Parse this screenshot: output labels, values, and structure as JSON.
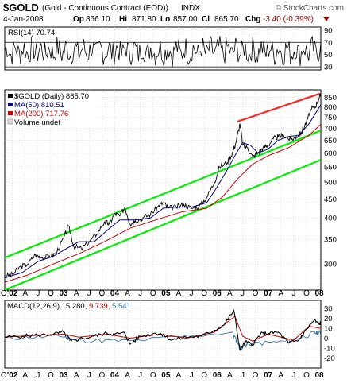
{
  "header": {
    "symbol": "$GOLD",
    "description": "(Gold - Continuous Contract (EOD))",
    "exchange": "INDX",
    "watermark": "© StockCharts.com",
    "date": "4-Jan-2008",
    "quote": [
      {
        "label": "Op",
        "value": "866.10"
      },
      {
        "label": "Hi",
        "value": "871.80"
      },
      {
        "label": "Lo",
        "value": "857.00"
      },
      {
        "label": "Cl",
        "value": "865.70"
      },
      {
        "label": "Chg",
        "value": "-3.40 (-0.39%)"
      }
    ],
    "chg_arrow": "down-triangle-icon",
    "chg_color": "#990000"
  },
  "chart_data": [
    {
      "type": "line",
      "panel": "rsi",
      "title": "RSI(14) 70.74",
      "ylim": [
        25,
        95
      ],
      "yticks": [
        30,
        50,
        70,
        90
      ],
      "reference_lines": [
        30,
        70
      ],
      "x_range": [
        2001.85,
        2008.03
      ],
      "series": [
        {
          "color": "#000000",
          "value_last": 70.74
        }
      ],
      "grid": true
    },
    {
      "type": "line",
      "panel": "price",
      "scale": "log",
      "legend_position": "top-left",
      "legend": [
        {
          "text": "$GOLD (Daily) 865.70",
          "color": "#000000"
        },
        {
          "text": "MA(50) 810.51",
          "color": "#000080"
        },
        {
          "text": "MA(200) 717.76",
          "color": "#cc0000"
        },
        {
          "text": "Volume undef",
          "color": "#000000"
        }
      ],
      "ylim": [
        255,
        890
      ],
      "yticks": [
        300,
        350,
        400,
        450,
        500,
        550,
        600,
        650,
        700,
        750,
        800,
        850
      ],
      "x_range": [
        2001.85,
        2008.03
      ],
      "series": [
        {
          "name": "$GOLD (Daily)",
          "color": "#000000",
          "x": [
            2001.85,
            2002.0,
            2002.15,
            2002.3,
            2002.45,
            2002.55,
            2002.7,
            2002.85,
            2003.0,
            2003.1,
            2003.2,
            2003.35,
            2003.5,
            2003.65,
            2003.8,
            2003.9,
            2004.0,
            2004.1,
            2004.2,
            2004.3,
            2004.4,
            2004.55,
            2004.7,
            2004.85,
            2004.95,
            2005.05,
            2005.2,
            2005.35,
            2005.5,
            2005.65,
            2005.8,
            2005.95,
            2006.05,
            2006.2,
            2006.3,
            2006.37,
            2006.45,
            2006.5,
            2006.6,
            2006.7,
            2006.8,
            2006.9,
            2007.0,
            2007.1,
            2007.2,
            2007.3,
            2007.45,
            2007.55,
            2007.65,
            2007.75,
            2007.85,
            2007.92,
            2008.0,
            2008.03
          ],
          "y": [
            278,
            281,
            295,
            300,
            318,
            313,
            315,
            320,
            352,
            380,
            335,
            330,
            345,
            362,
            390,
            385,
            412,
            405,
            428,
            385,
            394,
            400,
            410,
            430,
            440,
            425,
            428,
            435,
            425,
            430,
            455,
            500,
            550,
            565,
            600,
            640,
            720,
            630,
            620,
            585,
            600,
            620,
            630,
            655,
            665,
            670,
            650,
            665,
            680,
            730,
            790,
            800,
            850,
            865.7
          ]
        },
        {
          "name": "MA(50)",
          "color": "#000080",
          "x": [
            2001.85,
            2002.2,
            2002.5,
            2002.8,
            2003.05,
            2003.3,
            2003.6,
            2003.9,
            2004.1,
            2004.4,
            2004.7,
            2004.95,
            2005.2,
            2005.5,
            2005.8,
            2006.0,
            2006.2,
            2006.35,
            2006.5,
            2006.65,
            2006.8,
            2007.0,
            2007.2,
            2007.4,
            2007.6,
            2007.8,
            2008.03
          ],
          "y": [
            275,
            285,
            305,
            315,
            330,
            345,
            345,
            375,
            395,
            395,
            400,
            425,
            428,
            428,
            440,
            485,
            540,
            590,
            640,
            630,
            600,
            615,
            650,
            665,
            670,
            720,
            810.51
          ]
        },
        {
          "name": "MA(200)",
          "color": "#cc0000",
          "x": [
            2001.85,
            2002.3,
            2002.8,
            2003.3,
            2003.8,
            2004.3,
            2004.8,
            2005.3,
            2005.8,
            2006.1,
            2006.4,
            2006.7,
            2007.0,
            2007.4,
            2007.8,
            2008.03
          ],
          "y": [
            268,
            280,
            300,
            320,
            345,
            375,
            395,
            415,
            425,
            455,
            510,
            560,
            590,
            620,
            670,
            717.76
          ]
        }
      ],
      "trend_lines": [
        {
          "color": "#00ee00",
          "x": [
            2001.85,
            2008.03
          ],
          "y": [
            312,
            690
          ]
        },
        {
          "color": "#00ee00",
          "x": [
            2001.85,
            2008.03
          ],
          "y": [
            255,
            575
          ]
        },
        {
          "color": "#ff2222",
          "x": [
            2006.4,
            2008.0
          ],
          "y": [
            730,
            868
          ]
        }
      ],
      "grid": true
    },
    {
      "type": "line",
      "panel": "macd",
      "title": "MACD(12,26,9) 15.280, 9.739, 5.541",
      "legend": [
        {
          "text": "MACD(12,26,9) 15.280",
          "color": "#000000"
        },
        {
          "text": "9.739",
          "color": "#cc0000"
        },
        {
          "text": "5.541",
          "color": "#3377aa"
        }
      ],
      "ylim": [
        -30,
        38
      ],
      "yticks": [
        -20,
        -10,
        0,
        10,
        20,
        30
      ],
      "x_range": [
        2001.85,
        2008.03
      ],
      "series": [
        {
          "name": "MACD",
          "color": "#000000",
          "x": [
            2001.85,
            2002.2,
            2002.5,
            2002.8,
            2003.0,
            2003.15,
            2003.3,
            2003.6,
            2003.85,
            2004.0,
            2004.2,
            2004.3,
            2004.5,
            2004.8,
            2004.95,
            2005.1,
            2005.4,
            2005.7,
            2005.95,
            2006.15,
            2006.33,
            2006.45,
            2006.55,
            2006.7,
            2006.85,
            2007.0,
            2007.2,
            2007.4,
            2007.6,
            2007.75,
            2007.9,
            2008.0,
            2008.03
          ],
          "y": [
            1,
            2,
            3,
            4,
            6,
            -3,
            -1,
            2,
            5,
            4,
            5,
            -6,
            2,
            5,
            4,
            -2,
            1,
            2,
            8,
            14,
            28,
            -12,
            -4,
            -6,
            4,
            5,
            6,
            -5,
            -2,
            9,
            18,
            14,
            15.28
          ]
        },
        {
          "name": "Signal",
          "color": "#cc0000",
          "x": [
            2001.85,
            2002.5,
            2003.0,
            2003.3,
            2003.85,
            2004.3,
            2004.9,
            2005.4,
            2005.95,
            2006.35,
            2006.5,
            2006.7,
            2007.0,
            2007.5,
            2007.8,
            2008.03
          ],
          "y": [
            1,
            3,
            4,
            1,
            4,
            0,
            4,
            0,
            6,
            22,
            2,
            -3,
            4,
            -2,
            12,
            9.739
          ]
        },
        {
          "name": "Histogram",
          "color": "#3377aa",
          "x": [
            2001.85,
            2003.0,
            2003.2,
            2004.3,
            2006.3,
            2006.45,
            2006.6,
            2007.4,
            2007.9,
            2008.03
          ],
          "y": [
            0,
            2,
            -2,
            -3,
            6,
            -10,
            -6,
            -3,
            5,
            5.541
          ]
        }
      ],
      "grid": true
    }
  ],
  "x_axis": {
    "labels": [
      {
        "text": "O",
        "x": 2001.83
      },
      {
        "text": "'02",
        "x": 2002.0
      },
      {
        "text": "A",
        "x": 2002.25
      },
      {
        "text": "J",
        "x": 2002.5
      },
      {
        "text": "O",
        "x": 2002.75
      },
      {
        "text": "03",
        "x": 2003.0
      },
      {
        "text": "A",
        "x": 2003.25
      },
      {
        "text": "J",
        "x": 2003.5
      },
      {
        "text": "O",
        "x": 2003.75
      },
      {
        "text": "04",
        "x": 2004.0
      },
      {
        "text": "A",
        "x": 2004.25
      },
      {
        "text": "J",
        "x": 2004.5
      },
      {
        "text": "O",
        "x": 2004.75
      },
      {
        "text": "05",
        "x": 2005.0
      },
      {
        "text": "A",
        "x": 2005.25
      },
      {
        "text": "J",
        "x": 2005.5
      },
      {
        "text": "O",
        "x": 2005.75
      },
      {
        "text": "06",
        "x": 2006.0
      },
      {
        "text": "A",
        "x": 2006.25
      },
      {
        "text": "J",
        "x": 2006.5
      },
      {
        "text": "O",
        "x": 2006.75
      },
      {
        "text": "07",
        "x": 2007.0
      },
      {
        "text": "A",
        "x": 2007.25
      },
      {
        "text": "J",
        "x": 2007.5
      },
      {
        "text": "O",
        "x": 2007.75
      },
      {
        "text": "08",
        "x": 2008.0
      }
    ],
    "bold": [
      "'02",
      "03",
      "04",
      "05",
      "06",
      "07",
      "08"
    ]
  }
}
